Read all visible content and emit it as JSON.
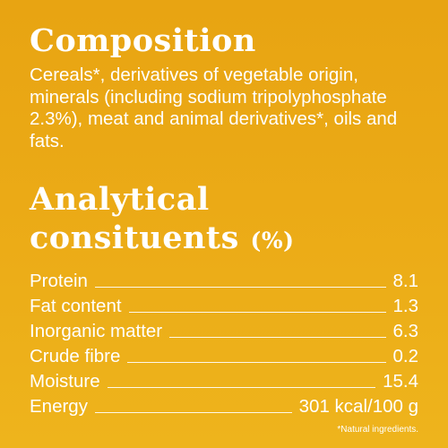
{
  "composition": {
    "heading": "Composition",
    "text": "Cereals*, derivatives of vegetable origin, minerals (including sodium tripolyphosphate 2.3%), meat and animal derivatives*, oils and fats."
  },
  "analytical": {
    "heading_line1": "Analytical",
    "heading_line2": "consituents",
    "heading_unit": "(%)",
    "rows": [
      {
        "label": "Protein",
        "value": "8.1"
      },
      {
        "label": "Fat content",
        "value": "1.3"
      },
      {
        "label": "Inorganic matter",
        "value": "6.3"
      },
      {
        "label": "Crude fibre",
        "value": "0.2"
      },
      {
        "label": "Moisture",
        "value": "15.4"
      },
      {
        "label": "Energy",
        "value": "301 kcal/100 g"
      }
    ]
  },
  "footnote": "*Natural ingredients."
}
